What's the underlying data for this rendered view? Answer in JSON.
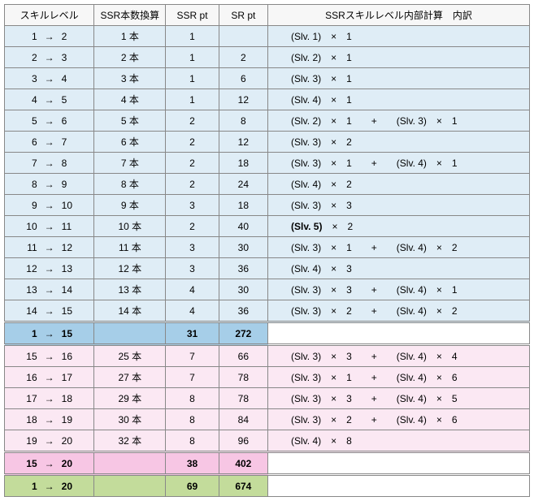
{
  "header": {
    "level": "スキルレベル",
    "ssr_count": "SSR本数換算",
    "ssr_pt": "SSR pt",
    "sr_pt": "SR pt",
    "calc": "SSRスキルレベル内部計算　内訳"
  },
  "rows": [
    {
      "group": "blue",
      "from": "1",
      "to": "2",
      "ssr": "1 本",
      "ssrpt": "1",
      "srpt": "",
      "calc": "(Slv. 1)　×　1"
    },
    {
      "group": "blue",
      "from": "2",
      "to": "3",
      "ssr": "2 本",
      "ssrpt": "1",
      "srpt": "2",
      "calc": "(Slv. 2)　×　1"
    },
    {
      "group": "blue",
      "from": "3",
      "to": "4",
      "ssr": "3 本",
      "ssrpt": "1",
      "srpt": "6",
      "calc": "(Slv. 3)　×　1"
    },
    {
      "group": "blue",
      "from": "4",
      "to": "5",
      "ssr": "4 本",
      "ssrpt": "1",
      "srpt": "12",
      "calc": "(Slv. 4)　×　1"
    },
    {
      "group": "blue",
      "from": "5",
      "to": "6",
      "ssr": "5 本",
      "ssrpt": "2",
      "srpt": "8",
      "calc": "(Slv. 2)　×　1　　+　　(Slv. 3)　×　1"
    },
    {
      "group": "blue",
      "from": "6",
      "to": "7",
      "ssr": "6 本",
      "ssrpt": "2",
      "srpt": "12",
      "calc": "(Slv. 3)　×　2"
    },
    {
      "group": "blue",
      "from": "7",
      "to": "8",
      "ssr": "7 本",
      "ssrpt": "2",
      "srpt": "18",
      "calc": "(Slv. 3)　×　1　　+　　(Slv. 4)　×　1"
    },
    {
      "group": "blue",
      "from": "8",
      "to": "9",
      "ssr": "8 本",
      "ssrpt": "2",
      "srpt": "24",
      "calc": "(Slv. 4)　×　2"
    },
    {
      "group": "blue",
      "from": "9",
      "to": "10",
      "ssr": "9 本",
      "ssrpt": "3",
      "srpt": "18",
      "calc": "(Slv. 3)　×　3"
    },
    {
      "group": "blue",
      "from": "10",
      "to": "11",
      "ssr": "10 本",
      "ssrpt": "2",
      "srpt": "40",
      "calc": "<b>(Slv. 5)</b>　×　2"
    },
    {
      "group": "blue",
      "from": "11",
      "to": "12",
      "ssr": "11 本",
      "ssrpt": "3",
      "srpt": "30",
      "calc": "(Slv. 3)　×　1　　+　　(Slv. 4)　×　2"
    },
    {
      "group": "blue",
      "from": "12",
      "to": "13",
      "ssr": "12 本",
      "ssrpt": "3",
      "srpt": "36",
      "calc": "(Slv. 4)　×　3"
    },
    {
      "group": "blue",
      "from": "13",
      "to": "14",
      "ssr": "13 本",
      "ssrpt": "4",
      "srpt": "30",
      "calc": "(Slv. 3)　×　3　　+　　(Slv. 4)　×　1"
    },
    {
      "group": "blue",
      "from": "14",
      "to": "15",
      "ssr": "14 本",
      "ssrpt": "4",
      "srpt": "36",
      "calc": "(Slv. 3)　×　2　　+　　(Slv. 4)　×　2"
    },
    {
      "group": "sum-blue",
      "dbl": true,
      "from": "1",
      "to": "15",
      "ssr": "",
      "ssrpt": "31",
      "srpt": "272",
      "calc": ""
    },
    {
      "group": "pink",
      "dbl": true,
      "from": "15",
      "to": "16",
      "ssr": "25 本",
      "ssrpt": "7",
      "srpt": "66",
      "calc": "(Slv. 3)　×　3　　+　　(Slv. 4)　×　4"
    },
    {
      "group": "pink",
      "from": "16",
      "to": "17",
      "ssr": "27 本",
      "ssrpt": "7",
      "srpt": "78",
      "calc": "(Slv. 3)　×　1　　+　　(Slv. 4)　×　6"
    },
    {
      "group": "pink",
      "from": "17",
      "to": "18",
      "ssr": "29 本",
      "ssrpt": "8",
      "srpt": "78",
      "calc": "(Slv. 3)　×　3　　+　　(Slv. 4)　×　5"
    },
    {
      "group": "pink",
      "from": "18",
      "to": "19",
      "ssr": "30 本",
      "ssrpt": "8",
      "srpt": "84",
      "calc": "(Slv. 3)　×　2　　+　　(Slv. 4)　×　6"
    },
    {
      "group": "pink",
      "from": "19",
      "to": "20",
      "ssr": "32 本",
      "ssrpt": "8",
      "srpt": "96",
      "calc": "(Slv. 4)　×　8"
    },
    {
      "group": "sum-pink",
      "dbl": true,
      "from": "15",
      "to": "20",
      "ssr": "",
      "ssrpt": "38",
      "srpt": "402",
      "calc": ""
    },
    {
      "group": "sum-green",
      "dbl": true,
      "from": "1",
      "to": "20",
      "ssr": "",
      "ssrpt": "69",
      "srpt": "674",
      "calc": ""
    }
  ]
}
